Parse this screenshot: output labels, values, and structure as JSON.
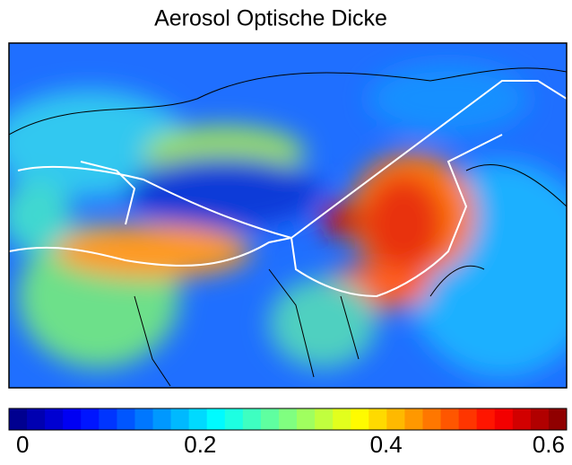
{
  "title": "Aerosol Optische Dicke",
  "colorbar": {
    "range": [
      0,
      0.6
    ],
    "ticks": [
      0,
      0.2,
      0.4,
      0.6
    ]
  }
}
